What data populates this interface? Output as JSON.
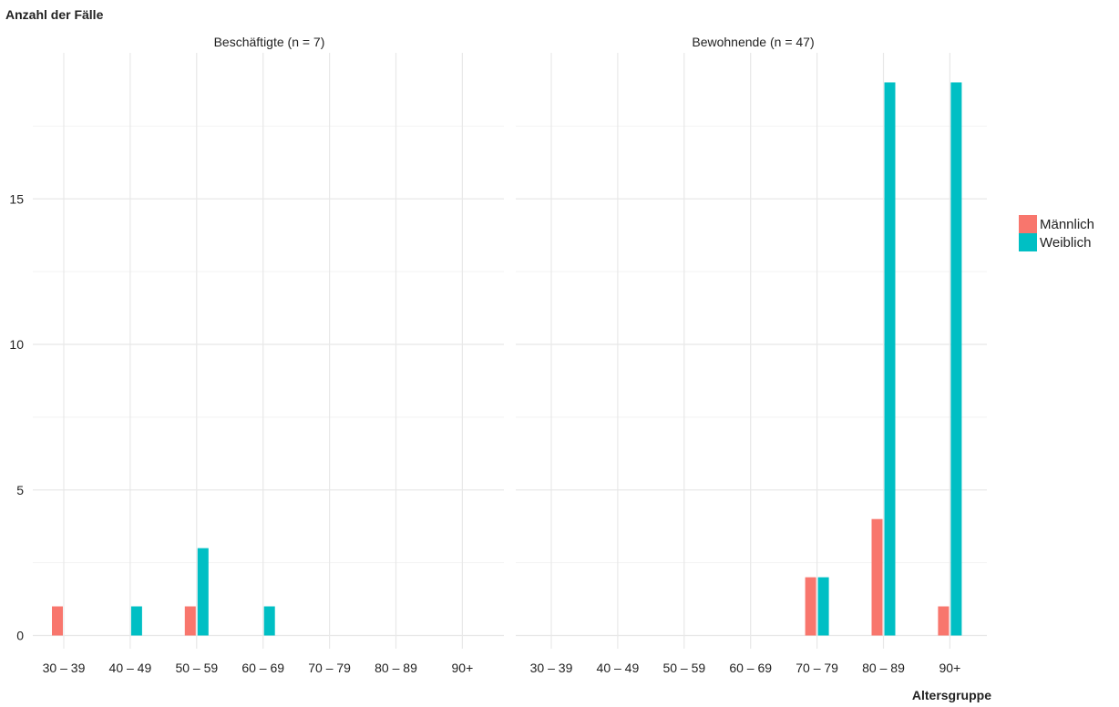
{
  "chart_data": {
    "type": "bar",
    "ylabel": "Anzahl der Fälle",
    "xlabel": "Altersgruppe",
    "ylim": [
      0,
      20
    ],
    "yticks": [
      0,
      5,
      10,
      15
    ],
    "grid": true,
    "legend_position": "right",
    "categories": [
      "30 – 39",
      "40 – 49",
      "50 – 59",
      "60 – 69",
      "70 – 79",
      "80 – 89",
      "90+"
    ],
    "series_meta": [
      {
        "name": "Männlich",
        "color": "#F8766D"
      },
      {
        "name": "Weiblich",
        "color": "#00BFC4"
      }
    ],
    "panels": [
      {
        "title": "Beschäftigte (n = 7)",
        "series": [
          {
            "name": "Männlich",
            "values": [
              1,
              0,
              1,
              0,
              0,
              0,
              0
            ]
          },
          {
            "name": "Weiblich",
            "values": [
              0,
              1,
              3,
              1,
              0,
              0,
              0
            ]
          }
        ]
      },
      {
        "title": "Bewohnende (n = 47)",
        "series": [
          {
            "name": "Männlich",
            "values": [
              0,
              0,
              0,
              0,
              2,
              4,
              1
            ]
          },
          {
            "name": "Weiblich",
            "values": [
              0,
              0,
              0,
              0,
              2,
              19,
              19
            ]
          }
        ]
      }
    ]
  }
}
